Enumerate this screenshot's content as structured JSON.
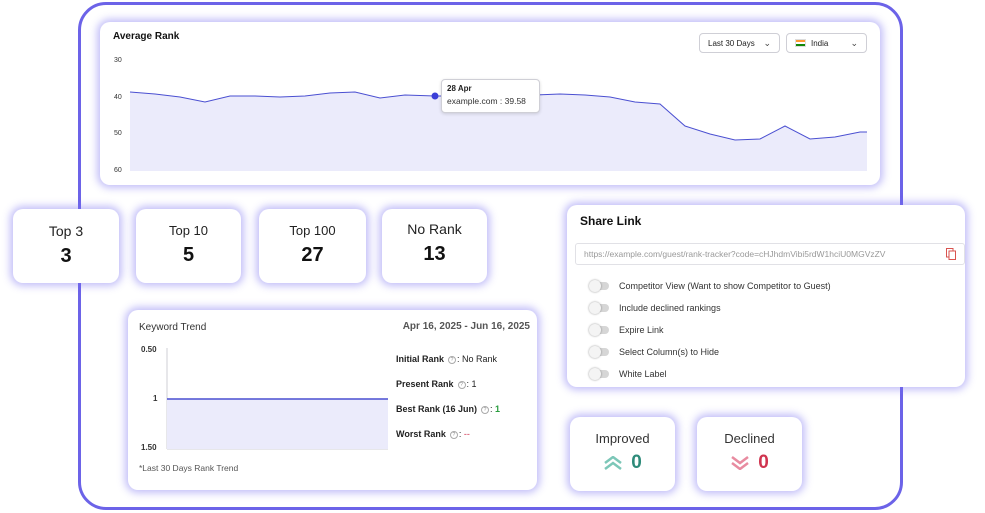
{
  "average_rank": {
    "title": "Average Rank",
    "date_filter": "Last 30 Days",
    "country_filter": "India",
    "y_ticks": [
      "30",
      "40",
      "50",
      "60"
    ],
    "tooltip": {
      "date": "28 Apr",
      "label": "example.com : 39.58"
    }
  },
  "stats": [
    {
      "label": "Top 3",
      "value": "3"
    },
    {
      "label": "Top 10",
      "value": "5"
    },
    {
      "label": "Top 100",
      "value": "27"
    },
    {
      "label": "No Rank",
      "value": "13"
    }
  ],
  "share_link": {
    "title": "Share Link",
    "url": "https://example.com/guest/rank-tracker?code=cHJhdmVibi5rdW1hciU0MGVzZV",
    "options": [
      "Competitor View (Want to show Competitor to Guest)",
      "Include declined rankings",
      "Expire Link",
      "Select Column(s) to Hide",
      "White Label"
    ]
  },
  "keyword_trend": {
    "title": "Keyword Trend",
    "date_range": "Apr 16, 2025 - Jun 16, 2025",
    "y_ticks": [
      "0.50",
      "1",
      "1.50"
    ],
    "initial_rank_label": "Initial Rank",
    "initial_rank_value": "No Rank",
    "present_rank_label": "Present Rank",
    "present_rank_value": "1",
    "best_rank_label": "Best Rank (16 Jun)",
    "best_rank_value": "1",
    "worst_rank_label": "Worst Rank",
    "worst_rank_value": "--",
    "note": "*Last 30 Days Rank Trend"
  },
  "improved": {
    "label": "Improved",
    "value": "0",
    "color": "#2e8b7a"
  },
  "declined": {
    "label": "Declined",
    "value": "0",
    "color": "#d0344f"
  },
  "colors": {
    "accent": "#6c63e8",
    "line": "#4a4fd1",
    "fill": "#ebebfb"
  }
}
